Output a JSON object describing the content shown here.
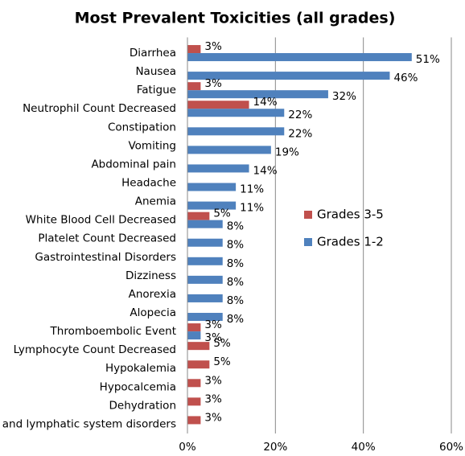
{
  "chart_data": {
    "type": "hbar",
    "title": "Most Prevalent Toxicities (all grades)",
    "categories": [
      "Diarrhea",
      "Nausea",
      "Fatigue",
      "Neutrophil Count Decreased",
      "Constipation",
      "Vomiting",
      "Abdominal pain",
      "Headache",
      "Anemia",
      "White Blood Cell Decreased",
      "Platelet Count Decreased",
      "Gastrointestinal Disorders",
      "Dizziness",
      "Anorexia",
      "Alopecia",
      "Thromboembolic Event",
      "Lymphocyte Count Decreased",
      "Hypokalemia",
      "Hypocalcemia",
      "Dehydration",
      "and lymphatic system disorders"
    ],
    "series": [
      {
        "name": "Grades 3-5",
        "color": "#c0504d",
        "values": [
          3,
          null,
          3,
          14,
          null,
          null,
          null,
          null,
          null,
          5,
          null,
          null,
          null,
          null,
          null,
          3,
          5,
          5,
          3,
          3,
          3
        ],
        "value_labels": [
          "3%",
          null,
          "3%",
          "14%",
          null,
          null,
          null,
          null,
          null,
          "5%",
          null,
          null,
          null,
          null,
          null,
          "3%",
          "5%",
          "5%",
          "3%",
          "3%",
          "3%"
        ]
      },
      {
        "name": "Grades 1-2",
        "color": "#4f81bd",
        "values": [
          51,
          46,
          32,
          22,
          22,
          19,
          14,
          11,
          11,
          8,
          8,
          8,
          8,
          8,
          8,
          3,
          null,
          null,
          null,
          null,
          null
        ],
        "value_labels": [
          "51%",
          "46%",
          "32%",
          "22%",
          "22%",
          "19%",
          "14%",
          "11%",
          "11%",
          "8%",
          "8%",
          "8%",
          "8%",
          "8%",
          "8%",
          "3%",
          null,
          null,
          null,
          null,
          null
        ]
      }
    ],
    "xlim": [
      0,
      60
    ],
    "xticks": [
      {
        "value": 0,
        "label": "0%"
      },
      {
        "value": 20,
        "label": "20%"
      },
      {
        "value": 40,
        "label": "40%"
      },
      {
        "value": 60,
        "label": "60%"
      }
    ],
    "grid": true
  }
}
